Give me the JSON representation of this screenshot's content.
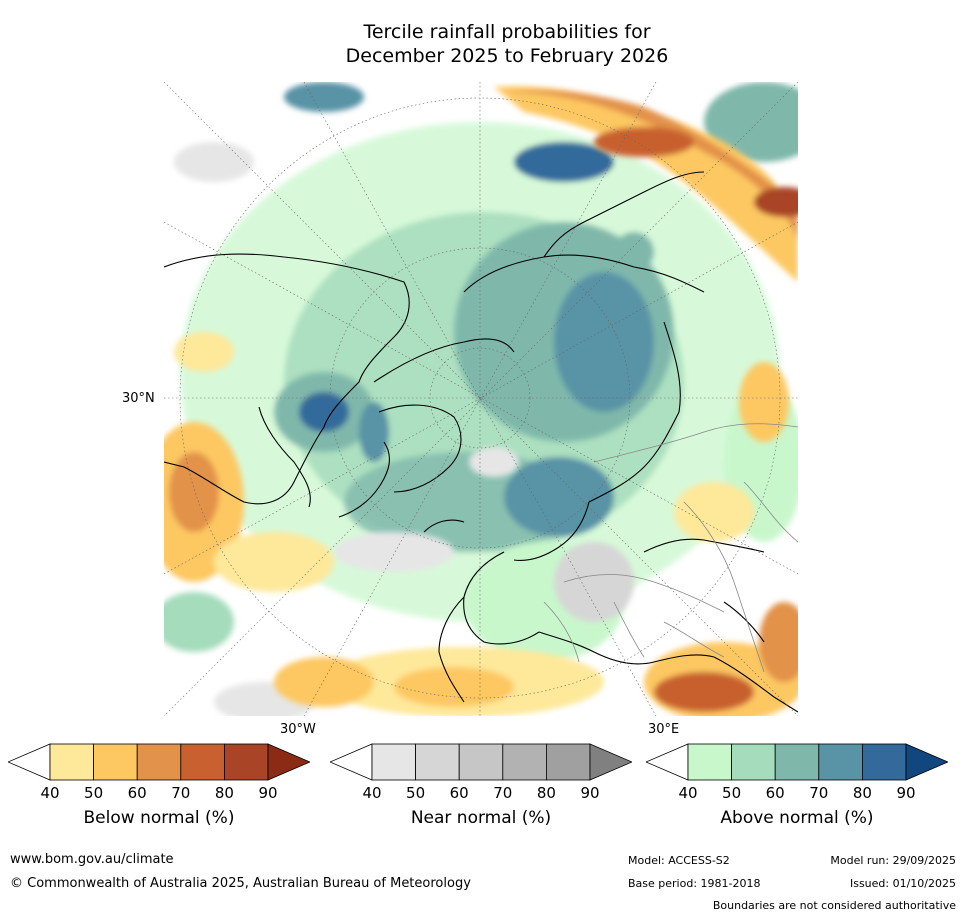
{
  "title": {
    "line1": "Tercile rainfall probabilities for",
    "line2": "December 2025 to February 2026"
  },
  "map": {
    "labels": {
      "lat_30n": "30°N",
      "lon_30w": "30°W",
      "lon_30e": "30°E"
    },
    "projection": "north-polar-stereographic",
    "colors": {
      "land_white": "#ffffff",
      "coast": "#000000",
      "borders": "#888888",
      "graticule": "#666666"
    }
  },
  "legends": {
    "below": {
      "title": "Below normal (%)",
      "ticks": [
        "40",
        "50",
        "60",
        "70",
        "80",
        "90"
      ],
      "colors": [
        "#ffffff",
        "#fee89a",
        "#fdc862",
        "#e2924a",
        "#c8602f",
        "#a94426",
        "#8b2a15"
      ]
    },
    "near": {
      "title": "Near normal (%)",
      "ticks": [
        "40",
        "50",
        "60",
        "70",
        "80",
        "90"
      ],
      "colors": [
        "#ffffff",
        "#e6e6e6",
        "#d6d6d6",
        "#c6c6c6",
        "#b2b2b2",
        "#a0a0a0",
        "#808080"
      ]
    },
    "above": {
      "title": "Above normal (%)",
      "ticks": [
        "40",
        "50",
        "60",
        "70",
        "80",
        "90"
      ],
      "colors": [
        "#ffffff",
        "#c9f7cc",
        "#a4dcbc",
        "#7fb8ab",
        "#5993a6",
        "#336a9b",
        "#11467f"
      ]
    }
  },
  "footer": {
    "url": "www.bom.gov.au/climate",
    "copyright": "© Commonwealth of Australia 2025, Australian Bureau of Meteorology",
    "model": "Model: ACCESS-S2",
    "base_period": "Base period: 1981-2018",
    "model_run": "Model run: 29/09/2025",
    "issued": "Issued: 01/10/2025",
    "disclaimer": "Boundaries are not considered authoritative"
  }
}
